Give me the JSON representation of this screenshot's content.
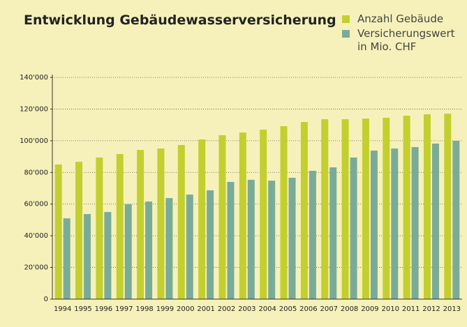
{
  "chart_data": {
    "type": "bar",
    "title": "Entwicklung Gebäudewasserversicherung",
    "categories": [
      "1994",
      "1995",
      "1996",
      "1997",
      "1998",
      "1999",
      "2000",
      "2001",
      "2002",
      "2003",
      "2004",
      "2005",
      "2006",
      "2007",
      "2008",
      "2009",
      "2010",
      "2011",
      "2012",
      "2013"
    ],
    "series": [
      {
        "name": "Anzahl Gebäude",
        "color": "#c3cf2f",
        "values": [
          85000,
          86700,
          89400,
          91600,
          94200,
          95100,
          97300,
          100800,
          103500,
          105200,
          107000,
          109200,
          111800,
          113600,
          113600,
          114000,
          114500,
          115800,
          116700,
          117100
        ]
      },
      {
        "name": "Versicherungswert in Mio. CHF",
        "color": "#7aab98",
        "values": [
          51000,
          53700,
          55000,
          59900,
          61600,
          63800,
          66000,
          68700,
          74000,
          75300,
          74800,
          76600,
          81000,
          83200,
          89400,
          93800,
          95100,
          96000,
          98200,
          99900
        ]
      }
    ],
    "ylim": [
      0,
      140000
    ],
    "yticks": [
      0,
      {
        "value": 20000,
        "label": "20'000"
      },
      {
        "value": 40000,
        "label": "40'000"
      },
      {
        "value": 60000,
        "label": "60'000"
      },
      {
        "value": 80000,
        "label": "80'000"
      },
      {
        "value": 100000,
        "label": "100'000"
      },
      {
        "value": 120000,
        "label": "120'000"
      },
      {
        "value": 140000,
        "label": "140'000"
      }
    ],
    "grid": true,
    "legend": "top-right"
  }
}
